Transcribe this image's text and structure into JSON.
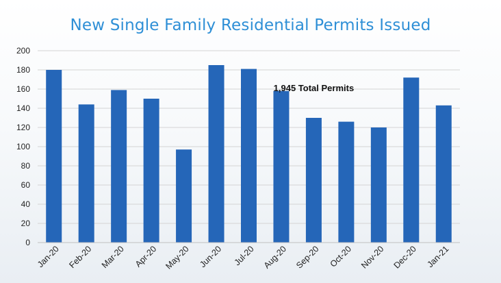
{
  "chart_data": {
    "type": "bar",
    "title": "New Single Family Residential Permits Issued",
    "categories": [
      "Jan-20",
      "Feb-20",
      "Mar-20",
      "Apr-20",
      "May-20",
      "Jun-20",
      "Jul-20",
      "Aug-20",
      "Sep-20",
      "Oct-20",
      "Nov-20",
      "Dec-20",
      "Jan-21"
    ],
    "values": [
      180,
      144,
      159,
      150,
      97,
      185,
      181,
      158,
      130,
      126,
      120,
      172,
      143
    ],
    "ylim": [
      0,
      200
    ],
    "yticks": [
      0,
      20,
      40,
      60,
      80,
      100,
      120,
      140,
      160,
      180,
      200
    ],
    "xlabel": "",
    "ylabel": "",
    "grid": true,
    "legend": "none",
    "annotation": "1,945 Total Permits",
    "colors": {
      "bar": "#2566b8",
      "grid": "#d4d4d4",
      "title": "#2e8fd6"
    }
  }
}
